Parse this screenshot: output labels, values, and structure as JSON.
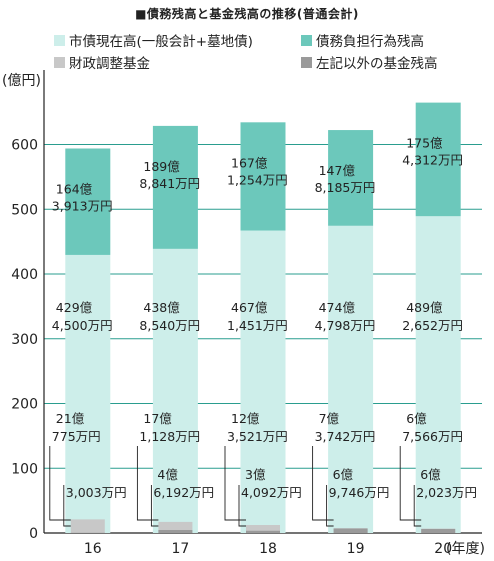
{
  "chart_data": {
    "type": "bar",
    "stacked": true,
    "title": "■債務残高と基金残高の推移(普通会計)",
    "ylabel": "(億円)",
    "xlabel_suffix": "(年度)",
    "categories": [
      "16",
      "17",
      "18",
      "19",
      "20"
    ],
    "ylim": [
      0,
      700
    ],
    "yticks": [
      0,
      100,
      200,
      300,
      400,
      500,
      600
    ],
    "grid": true,
    "legend_position": "top",
    "series": [
      {
        "name": "市債現在高(一般会計+墓地債)",
        "color": "#cdeeea",
        "values": [
          429.45,
          438.854,
          467.1451,
          474.4798,
          489.2652
        ],
        "labels": [
          [
            "429億",
            "4,500万円"
          ],
          [
            "438億",
            "8,540万円"
          ],
          [
            "467億",
            "1,451万円"
          ],
          [
            "474億",
            "4,798万円"
          ],
          [
            "489億",
            "2,652万円"
          ]
        ]
      },
      {
        "name": "債務負担行為残高",
        "color": "#6cc8bb",
        "values": [
          164.3913,
          189.8841,
          167.1254,
          147.8185,
          175.4312
        ],
        "labels": [
          [
            "164億",
            "3,913万円"
          ],
          [
            "189億",
            "8,841万円"
          ],
          [
            "167億",
            "1,254万円"
          ],
          [
            "147億",
            "8,185万円"
          ],
          [
            "175億",
            "4,312万円"
          ]
        ]
      },
      {
        "name": "財政調整基金",
        "color": "#c8c8c8",
        "values": [
          21.0775,
          17.1128,
          12.3521,
          7.3742,
          6.7566
        ],
        "labels": [
          [
            "21億",
            "775万円"
          ],
          [
            "17億",
            "1,128万円"
          ],
          [
            "12億",
            "3,521万円"
          ],
          [
            "7億",
            "3,742万円"
          ],
          [
            "6億",
            "7,566万円"
          ]
        ]
      },
      {
        "name": "左記以外の基金残高",
        "color": "#9a9a9a",
        "values": [
          0.3003,
          4.6192,
          3.4092,
          6.9746,
          6.2023
        ],
        "labels": [
          [
            "",
            "3,003万円"
          ],
          [
            "4億",
            "6,192万円"
          ],
          [
            "3億",
            "4,092万円"
          ],
          [
            "6億",
            "9,746万円"
          ],
          [
            "6億",
            "2,023万円"
          ]
        ]
      }
    ]
  }
}
